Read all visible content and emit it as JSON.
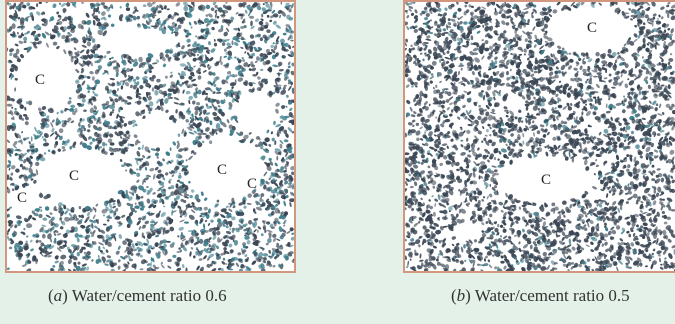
{
  "figure": {
    "panel_a": {
      "labels": [
        "C",
        "C",
        "C",
        "C",
        "C"
      ],
      "caption_letter": "a",
      "caption_text": "Water/cement ratio 0.6"
    },
    "panel_b": {
      "labels": [
        "C",
        "C"
      ],
      "caption_letter": "b",
      "caption_text": "Water/cement ratio 0.5"
    }
  },
  "colors": {
    "background": "#e4f1e9",
    "frame": "#d2977e",
    "grain_dark": "#3a4654",
    "grain_teal": "#3f7e8c"
  }
}
